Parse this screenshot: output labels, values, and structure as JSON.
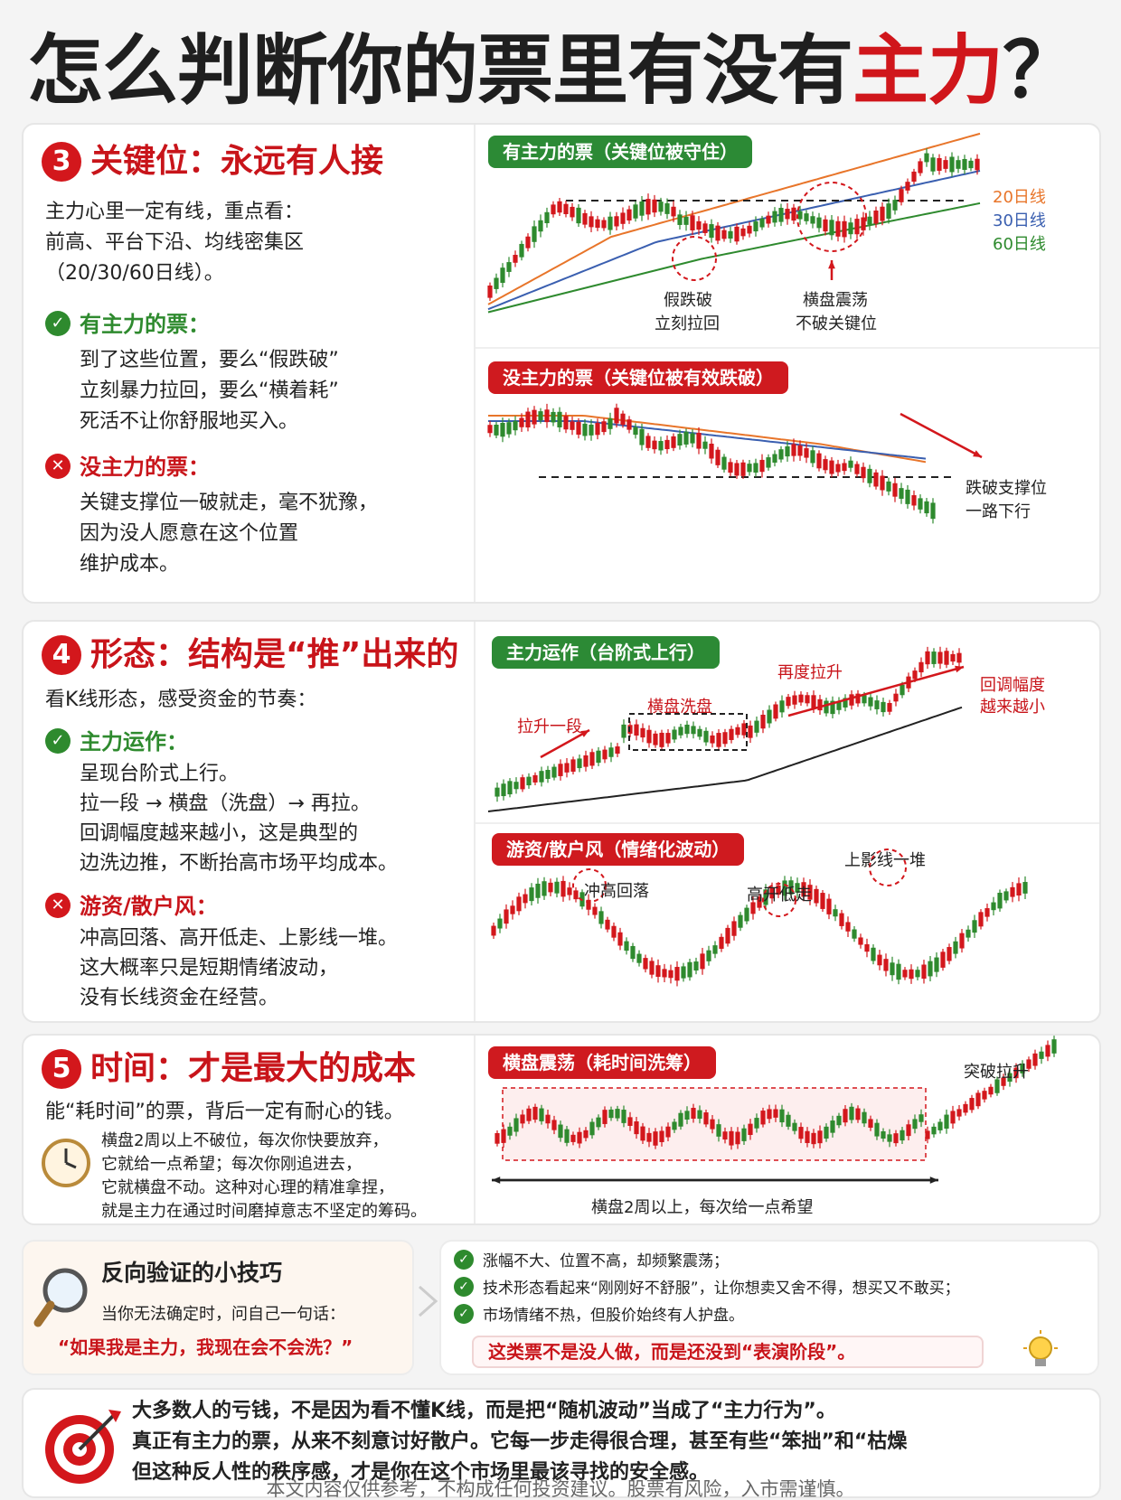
{
  "header": {
    "title_main": "怎么判断你的票里有没有",
    "title_highlight": "主力",
    "title_end": "？"
  },
  "s3": {
    "number": "3",
    "heading": "关键位：永远有人接",
    "intro": [
      "主力心里一定有线，重点看：",
      "前高、平台下沿、均线密集区",
      "（20/30/60日线）。"
    ],
    "yes_title": "有主力的票：",
    "yes_lines": [
      "到了这些位置，要么“假跌破”",
      "立刻暴力拉回，要么“横着耗”",
      "死活不让你舒服地买入。"
    ],
    "no_title": "没主力的票：",
    "no_lines": [
      "关键支撑位一破就走，毫不犹豫，",
      "因为没人愿意在这个位置",
      "维护成本。"
    ],
    "chart1": {
      "tag": "有主力的票（关键位被守住）",
      "ma20": "20日线",
      "ma30": "30日线",
      "ma60": "60日线",
      "ann1": [
        "假跌破",
        "立刻拉回"
      ],
      "ann2": [
        "横盘震荡",
        "不破关键位"
      ]
    },
    "chart2": {
      "tag": "没主力的票（关键位被有效跌破）",
      "ann": [
        "跌破支撑位",
        "一路下行"
      ]
    }
  },
  "s4": {
    "number": "4",
    "heading": "形态：结构是“推”出来的",
    "intro": "看K线形态，感受资金的节奏：",
    "yes_title": "主力运作：",
    "yes_lines": [
      "呈现台阶式上行。",
      "拉一段 → 横盘（洗盘）→ 再拉。",
      "回调幅度越来越小，这是典型的",
      "边洗边推，不断抬高市场平均成本。"
    ],
    "no_title": "游资/散户风：",
    "no_lines": [
      "冲高回落、高开低走、上影线一堆。",
      "这大概率只是短期情绪波动，",
      "没有长线资金在经营。"
    ],
    "chart1": {
      "tag": "主力运作（台阶式上行）",
      "a1": "拉升一段",
      "a2": "横盘洗盘",
      "a3": "再度拉升",
      "a4": [
        "回调幅度",
        "越来越小"
      ]
    },
    "chart2": {
      "tag": "游资/散户风（情绪化波动）",
      "a1": "冲高回落",
      "a2": "高开低走",
      "a3": "上影线一堆"
    }
  },
  "s5": {
    "number": "5",
    "heading": "时间：才是最大的成本",
    "intro": "能“耗时间”的票，背后一定有耐心的钱。",
    "clock_icon": "clock-icon",
    "lines": [
      "横盘2周以上不破位，每次你快要放弃，",
      "它就给一点希望；每次你刚追进去，",
      "它就横盘不动。这种对心理的精准拿捏，",
      "就是主力在通过时间磨掉意志不坚定的筹码。"
    ],
    "chart": {
      "tag": "横盘震荡（耗时间洗筹）",
      "breakout": "突破拉升",
      "caption": "横盘2周以上，每次给一点希望"
    }
  },
  "tips": {
    "title": "反向验证的小技巧",
    "ask": "当你无法确定时，问自己一句话：",
    "quote": "“如果我是主力，我现在会不会洗？”",
    "checks": [
      "涨幅不大、位置不高，却频繁震荡；",
      "技术形态看起来“刚刚好不舒服”，让你想卖又舍不得，想买又不敢买；",
      "市场情绪不热，但股价始终有人护盘。"
    ],
    "conclusion": "这类票不是没人做，而是还没到“表演阶段”。"
  },
  "summary": {
    "lines": [
      "大多数人的亏钱，不是因为看不懂K线，而是把“随机波动”当成了“主力行为”。",
      "真正有主力的票，从来不刻意讨好散户。它每一步走得很合理，甚至有些“笨拙”和“枯燥",
      "但这种反人性的秩序感，才是你在这个市场里最该寻找的安全感。"
    ]
  },
  "disclaimer": "本文内容仅供参考，不构成任何投资建议。股票有风险，入市需谨慎。",
  "colors": {
    "red": "#d3171c",
    "green": "#2c8a35",
    "up": "#d3171c",
    "down": "#2e8a2e",
    "ma20": "#e8752a",
    "ma30": "#3a5fb0",
    "ma60": "#2e8a2e"
  }
}
